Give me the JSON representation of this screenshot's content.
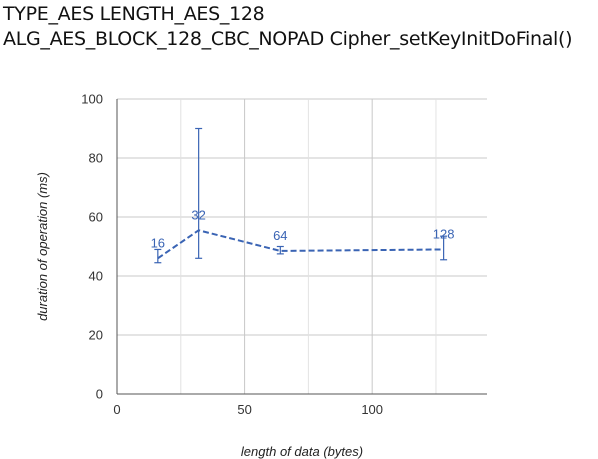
{
  "chart_data": {
    "type": "line",
    "title_lines": [
      "TYPE_AES LENGTH_AES_128",
      "ALG_AES_BLOCK_128_CBC_NOPAD Cipher_setKeyInitDoFinal()"
    ],
    "xlabel": "length of data (bytes)",
    "ylabel": "duration of operation (ms)",
    "xlim": [
      0,
      145
    ],
    "ylim": [
      0,
      100
    ],
    "xticks": [
      0,
      50,
      100
    ],
    "yticks": [
      0,
      20,
      40,
      60,
      80,
      100
    ],
    "grid": true,
    "series": [
      {
        "color": "#3a64b4",
        "line_style": "dashed",
        "x": [
          16,
          32,
          64,
          128
        ],
        "y": [
          46,
          55.5,
          48.5,
          49
        ],
        "err_low": [
          44.5,
          46,
          47.5,
          45.5
        ],
        "err_high": [
          49,
          90,
          50,
          53.5
        ],
        "labels": [
          "16",
          "32",
          "64",
          "128"
        ]
      }
    ]
  }
}
